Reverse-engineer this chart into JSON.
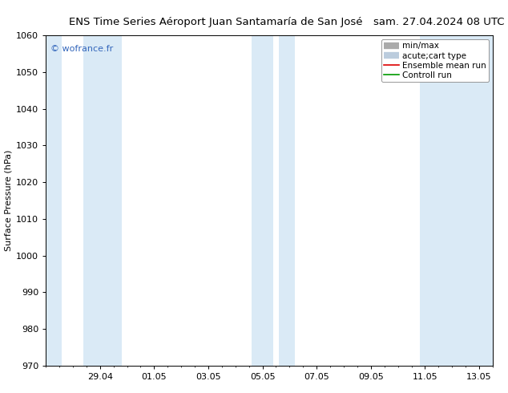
{
  "title_left": "ENS Time Series Aéroport Juan Santamaría de San José",
  "title_right": "sam. 27.04.2024 08 UTC",
  "ylabel": "Surface Pressure (hPa)",
  "ylim": [
    970,
    1060
  ],
  "yticks": [
    970,
    980,
    990,
    1000,
    1010,
    1020,
    1030,
    1040,
    1050,
    1060
  ],
  "xlim_start": 0.0,
  "xlim_end": 16.5,
  "xtick_labels": [
    "29.04",
    "01.05",
    "03.05",
    "05.05",
    "07.05",
    "09.05",
    "11.05",
    "13.05"
  ],
  "xtick_positions": [
    2.0,
    4.0,
    6.0,
    8.0,
    10.0,
    12.0,
    14.0,
    16.0
  ],
  "blue_bands": [
    {
      "start": 0.0,
      "end": 0.6
    },
    {
      "start": 1.4,
      "end": 2.8
    },
    {
      "start": 7.6,
      "end": 8.4
    },
    {
      "start": 8.6,
      "end": 9.2
    },
    {
      "start": 13.8,
      "end": 16.5
    }
  ],
  "band_color": "#daeaf6",
  "watermark": "© wofrance.fr",
  "watermark_color": "#3366bb",
  "legend_labels": [
    "min/max",
    "acute;cart type",
    "Ensemble mean run",
    "Controll run"
  ],
  "legend_line_colors": [
    "#aaaaaa",
    "#bbccdd",
    "#dd0000",
    "#009900"
  ],
  "background_color": "#ffffff",
  "title_fontsize": 9.5,
  "ylabel_fontsize": 8,
  "tick_fontsize": 8,
  "legend_fontsize": 7.5
}
